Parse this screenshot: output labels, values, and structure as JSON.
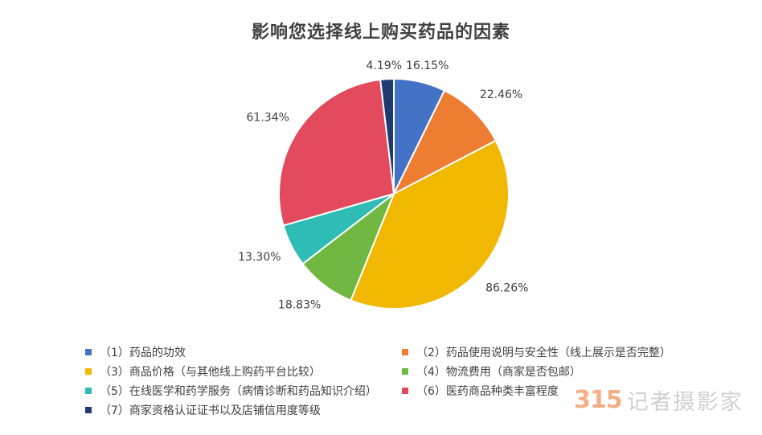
{
  "chart_data": {
    "type": "pie",
    "title": "影响您选择线上购买药品的因素",
    "categories": [
      "（1）药品的功效",
      "（2）药品使用说明与安全性（线上展示是否完整）",
      "（3）商品价格（与其他线上购药平台比较）",
      "（4）物流费用（商家是否包邮）",
      "（5）在线医学和药学服务（病情诊断和药品知识介绍）",
      "（6）医药商品种类丰富程度",
      "（7）商家资格认证证书以及店铺信用度等级"
    ],
    "values": [
      16.15,
      22.46,
      86.26,
      18.83,
      13.3,
      61.34,
      4.19
    ],
    "value_labels": [
      "16.15%",
      "22.46%",
      "86.26%",
      "18.83%",
      "13.30%",
      "61.34%",
      "4.19%"
    ],
    "colors": [
      "#4472c4",
      "#ed7d31",
      "#f0b800",
      "#70b842",
      "#2ebcb4",
      "#e34a5e",
      "#1f3a6e"
    ],
    "legend_position": "bottom",
    "start_angle": "12 o'clock",
    "direction": "clockwise"
  },
  "watermark": {
    "mark": "315",
    "text": "记者摄影家"
  }
}
